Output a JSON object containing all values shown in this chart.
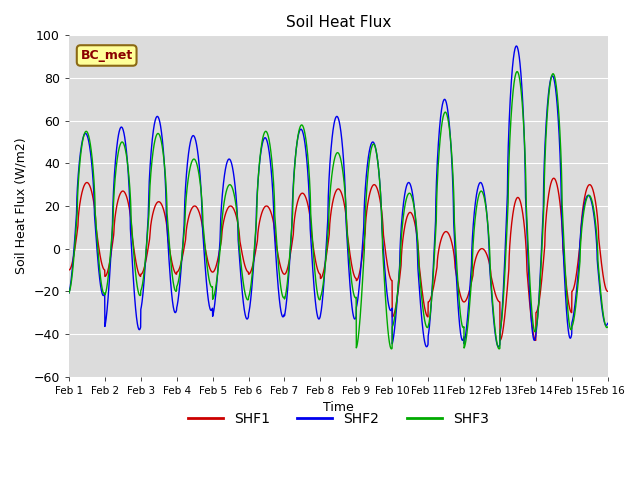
{
  "title": "Soil Heat Flux",
  "xlabel": "Time",
  "ylabel": "Soil Heat Flux (W/m2)",
  "ylim": [
    -60,
    100
  ],
  "xlim": [
    0,
    15
  ],
  "bg_color": "#dcdcdc",
  "fig_color": "#ffffff",
  "series_colors": [
    "#cc0000",
    "#0000ee",
    "#00aa00"
  ],
  "series_labels": [
    "SHF1",
    "SHF2",
    "SHF3"
  ],
  "bc_label": "BC_met",
  "xtick_labels": [
    "Feb 1",
    "Feb 2",
    "Feb 3",
    "Feb 4",
    "Feb 5",
    "Feb 6",
    "Feb 7",
    "Feb 8",
    "Feb 9",
    "Feb 10",
    "Feb 11",
    "Feb 12",
    "Feb 13",
    "Feb 14",
    "Feb 15",
    "Feb 16"
  ],
  "ytick_values": [
    -60,
    -40,
    -20,
    0,
    20,
    40,
    60,
    80,
    100
  ],
  "shf1_peaks": [
    31,
    27,
    22,
    20,
    20,
    20,
    26,
    28,
    30,
    17,
    8,
    0,
    24,
    33,
    30
  ],
  "shf1_troughs": [
    -10,
    -13,
    -12,
    -11,
    -11,
    -12,
    -12,
    -14,
    -15,
    -32,
    -25,
    -25,
    -43,
    -30,
    -20
  ],
  "shf2_peaks": [
    54,
    57,
    62,
    53,
    42,
    52,
    56,
    62,
    50,
    31,
    70,
    31,
    95,
    81,
    25
  ],
  "shf2_troughs": [
    -22,
    -38,
    -30,
    -29,
    -33,
    -32,
    -33,
    -33,
    -29,
    -46,
    -43,
    -46,
    -43,
    -42,
    -36
  ],
  "shf3_peaks": [
    55,
    50,
    54,
    42,
    30,
    55,
    58,
    45,
    49,
    26,
    64,
    27,
    83,
    82,
    25
  ],
  "shf3_troughs": [
    -21,
    -22,
    -20,
    -18,
    -24,
    -23,
    -24,
    -23,
    -47,
    -37,
    -37,
    -47,
    -39,
    -38,
    -37
  ]
}
